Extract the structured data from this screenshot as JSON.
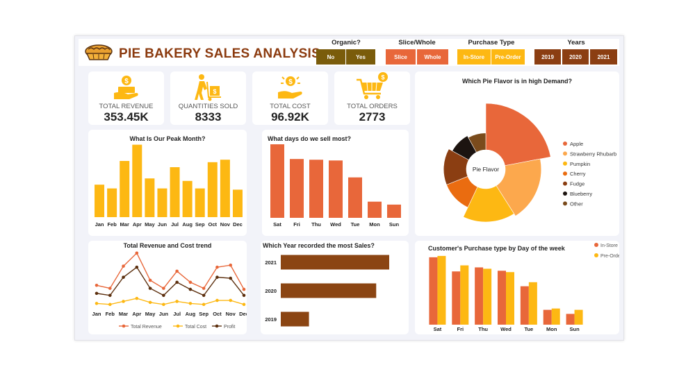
{
  "header": {
    "title": "PIE BAKERY SALES ANALYSIS"
  },
  "slicers": {
    "organic": {
      "title": "Organic?",
      "options": [
        "No",
        "Yes"
      ]
    },
    "slice": {
      "title": "Slice/Whole",
      "options": [
        "Slice",
        "Whole"
      ]
    },
    "purchase": {
      "title": "Purchase Type",
      "options": [
        "In-Store",
        "Pre-Order"
      ]
    },
    "years": {
      "title": "Years",
      "options": [
        "2019",
        "2020",
        "2021"
      ]
    }
  },
  "kpis": [
    {
      "label": "TOTAL REVENUE",
      "value": "353.45K",
      "icon": "money-hand-icon"
    },
    {
      "label": "QUANTITIES SOLD",
      "value": "8333",
      "icon": "hand-truck-icon"
    },
    {
      "label": "TOTAL COST",
      "value": "96.92K",
      "icon": "coins-hand-icon"
    },
    {
      "label": "TOTAL ORDERS",
      "value": "2773",
      "icon": "shopping-cart-icon",
      "badge": "$"
    }
  ],
  "colors": {
    "brand": "#8b3a0e",
    "orange": "#e8673a",
    "gold": "#fdb813",
    "brown": "#8b4513",
    "dark": "#5c2f0e"
  },
  "chart_data": [
    {
      "id": "peak_month",
      "type": "bar",
      "title": "What Is Our Peak Month?",
      "categories": [
        "Jan",
        "Feb",
        "Mar",
        "Apr",
        "May",
        "Jun",
        "Jul",
        "Aug",
        "Sep",
        "Oct",
        "Nov",
        "Dec"
      ],
      "values": [
        26,
        23,
        45,
        58,
        31,
        23,
        40,
        29,
        23,
        44,
        46,
        22
      ],
      "ylim": [
        0,
        60
      ],
      "color": "#fdb813"
    },
    {
      "id": "days_sold",
      "type": "bar",
      "title": "What days do we sell  most?",
      "categories": [
        "Sat",
        "Fri",
        "Thu",
        "Wed",
        "Tue",
        "Mon",
        "Sun"
      ],
      "values": [
        100,
        80,
        79,
        78,
        55,
        22,
        18
      ],
      "ylim": [
        0,
        100
      ],
      "color": "#e8673a"
    },
    {
      "id": "revenue_cost_trend",
      "type": "line",
      "title": "Total Revenue  and Cost trend",
      "categories": [
        "Jan",
        "Feb",
        "Mar",
        "Apr",
        "May",
        "Jun",
        "Jul",
        "Aug",
        "Sep",
        "Oct",
        "Nov",
        "Dec"
      ],
      "series": [
        {
          "name": "Total Revenue",
          "values": [
            26,
            23,
            45,
            58,
            31,
            23,
            40,
            29,
            23,
            44,
            46,
            22
          ],
          "color": "#e8673a"
        },
        {
          "name": "Total Cost",
          "values": [
            8,
            7,
            10,
            13,
            9,
            7,
            10,
            8,
            7,
            11,
            11,
            7
          ],
          "color": "#fdb813"
        },
        {
          "name": "Profit",
          "values": [
            18,
            16,
            34,
            44,
            23,
            16,
            29,
            22,
            16,
            34,
            33,
            16
          ],
          "color": "#5c2f0e"
        }
      ],
      "ylim": [
        0,
        62
      ],
      "legend": "bottom"
    },
    {
      "id": "year_sales",
      "type": "bar",
      "orientation": "horizontal",
      "title": "Which Year recorded the most Sales?",
      "categories": [
        "2021",
        "2020",
        "2019"
      ],
      "values": [
        100,
        88,
        26
      ],
      "xlim": [
        0,
        100
      ],
      "color": "#8b4513"
    },
    {
      "id": "flavor_demand",
      "type": "pie",
      "title": "Which Pie Flavor is in high Demand?",
      "center_label": "Pie Flavor",
      "legend": "right",
      "slices": [
        {
          "name": "Apple",
          "value": 22,
          "color": "#e8673a",
          "radius": 1.0
        },
        {
          "name": "Strawberry Rhubarb",
          "value": 19,
          "color": "#fca84d",
          "radius": 0.84
        },
        {
          "name": "Pumpkin",
          "value": 16,
          "color": "#fdb813",
          "radius": 0.8
        },
        {
          "name": "Cherry",
          "value": 12,
          "color": "#ea6c10",
          "radius": 0.64
        },
        {
          "name": "Fudge",
          "value": 14,
          "color": "#8b3e12",
          "radius": 0.64
        },
        {
          "name": "Blueberry",
          "value": 9,
          "color": "#1c1410",
          "radius": 0.58
        },
        {
          "name": "Other",
          "value": 8,
          "color": "#7a4b1c",
          "radius": 0.55
        }
      ]
    },
    {
      "id": "purchase_type_day",
      "type": "bar",
      "title": "Customer's Purchase type by Day of the week",
      "categories": [
        "Sat",
        "Fri",
        "Thu",
        "Wed",
        "Tue",
        "Mon",
        "Sun"
      ],
      "series": [
        {
          "name": "In-Store",
          "values": [
            100,
            79,
            85,
            80,
            57,
            22,
            16
          ],
          "color": "#e8673a"
        },
        {
          "name": "Pre-Order",
          "values": [
            102,
            88,
            83,
            78,
            63,
            24,
            22
          ],
          "color": "#fdb813"
        }
      ],
      "ylim": [
        0,
        105
      ],
      "legend": "top-right"
    }
  ]
}
